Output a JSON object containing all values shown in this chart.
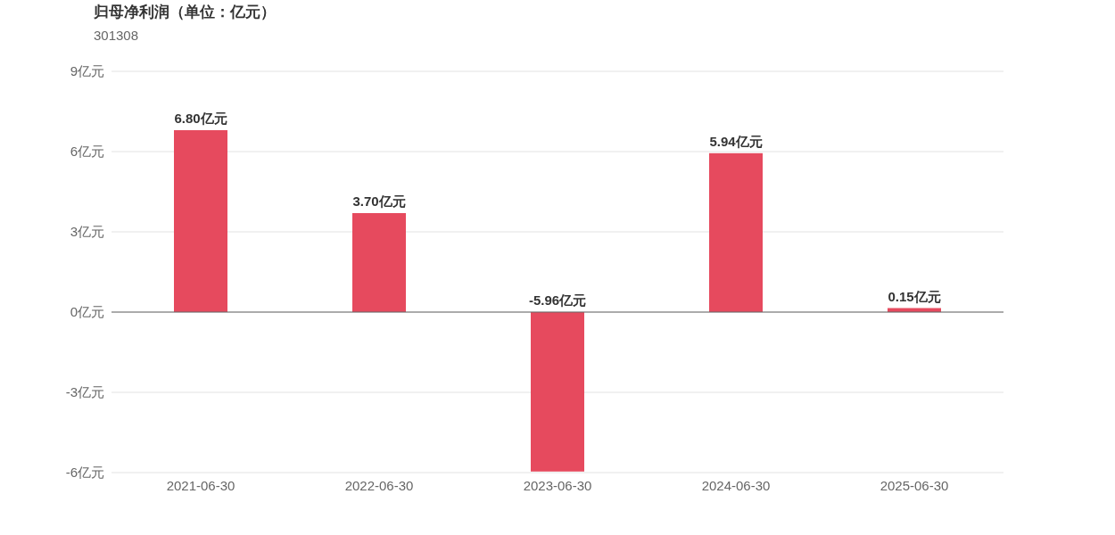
{
  "chart_data": {
    "type": "bar",
    "title": "归母净利润（单位：亿元）",
    "subtitle": "301308",
    "categories": [
      "2021-06-30",
      "2022-06-30",
      "2023-06-30",
      "2024-06-30",
      "2025-06-30"
    ],
    "values": [
      6.8,
      3.7,
      -5.96,
      5.94,
      0.15
    ],
    "color": "#e64a5e",
    "value_labels": [
      "6.80亿元",
      "3.70亿元",
      "-5.96亿元",
      "5.94亿元",
      "0.15亿元"
    ],
    "ylim": [
      -6,
      9
    ],
    "yticks": [
      {
        "value": -6,
        "label": "-6亿元"
      },
      {
        "value": -3,
        "label": "-3亿元"
      },
      {
        "value": 0,
        "label": "0亿元"
      },
      {
        "value": 3,
        "label": "3亿元"
      },
      {
        "value": 6,
        "label": "6亿元"
      },
      {
        "value": 9,
        "label": "9亿元"
      }
    ],
    "grid": "y"
  }
}
